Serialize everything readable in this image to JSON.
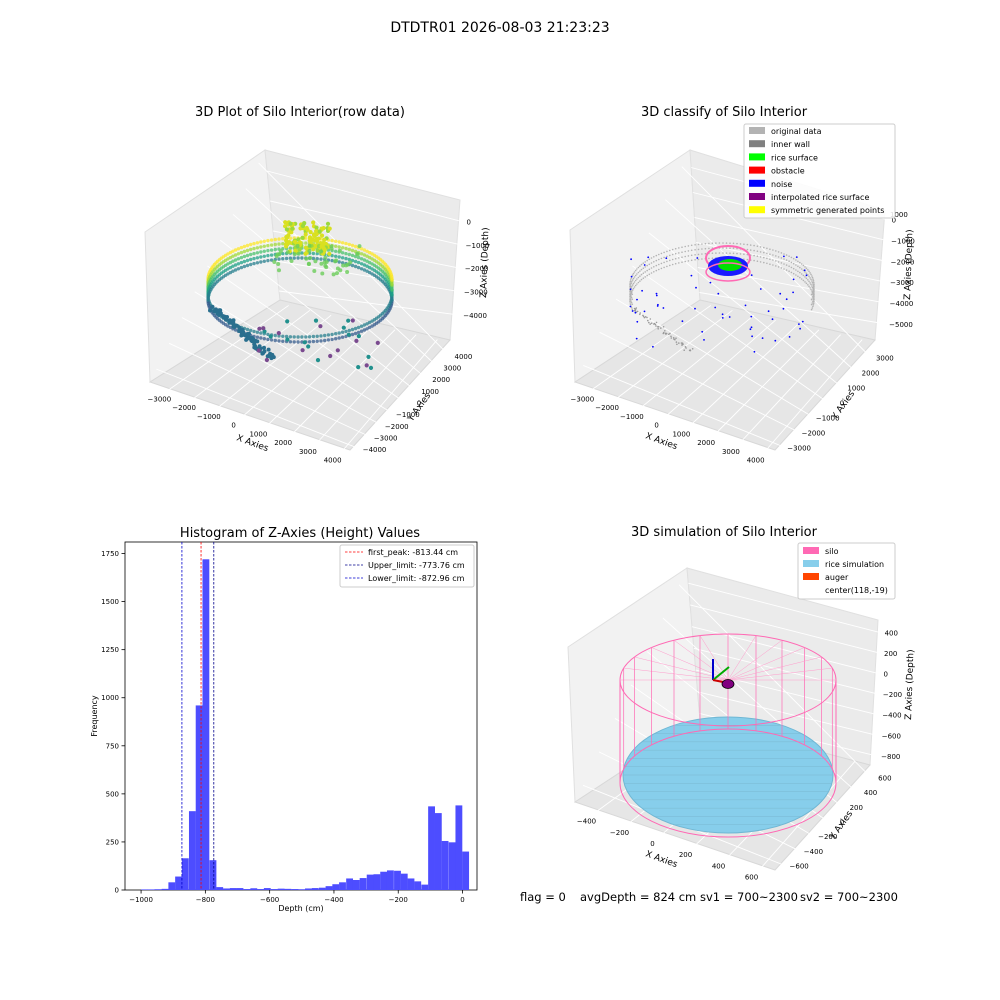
{
  "figure": {
    "suptitle": "DTDTR01 2026-08-03 21:23:23",
    "footer": {
      "flag": "flag = 0",
      "avg_depth": "avgDepth = 824 cm",
      "sv1": "sv1 = 700~2300",
      "sv2": "sv2 = 700~2300"
    }
  },
  "chart_data": [
    {
      "id": "raw3d",
      "type": "scatter",
      "projection": "3d",
      "title": "3D Plot of Silo Interior(row data)",
      "xlabel": "X Axies",
      "ylabel": "Y Axies",
      "zlabel": "Z Axies (Depth)",
      "x_ticks": [
        -3000,
        -2000,
        -1000,
        0,
        1000,
        2000,
        3000,
        4000
      ],
      "y_ticks": [
        -4000,
        -3000,
        -2000,
        -1000,
        0,
        1000,
        2000,
        3000,
        4000
      ],
      "z_ticks": [
        -4000,
        -3000,
        -2000,
        -1000,
        0
      ],
      "colormap": "viridis"
    },
    {
      "id": "classify3d",
      "type": "scatter",
      "projection": "3d",
      "title": "3D classify of Silo Interior",
      "xlabel": "X Axies",
      "ylabel": "Y Axies",
      "zlabel": "Z Axies (Depth)",
      "x_ticks": [
        -3000,
        -2000,
        -1000,
        0,
        1000,
        2000,
        3000,
        4000
      ],
      "y_ticks": [
        -3000,
        -2000,
        -1000,
        0,
        1000,
        2000,
        3000
      ],
      "z_ticks": [
        -5000,
        -4000,
        -3000,
        -2000,
        -1000,
        0
      ],
      "z_partial_tick": "1000",
      "legend_position": "top-right",
      "legend": [
        {
          "label": "original data",
          "color": "#b3b3b3"
        },
        {
          "label": "inner wall",
          "color": "#808080"
        },
        {
          "label": "rice surface",
          "color": "#00ff00"
        },
        {
          "label": "obstacle",
          "color": "#ff0000"
        },
        {
          "label": "noise",
          "color": "#0000ff"
        },
        {
          "label": "interpolated rice surface",
          "color": "#800080"
        },
        {
          "label": "symmetric generated points",
          "color": "#ffff00"
        }
      ]
    },
    {
      "id": "histogram",
      "type": "bar",
      "title": "Histogram of Z-Axies (Height) Values",
      "xlabel": "Depth (cm)",
      "ylabel": "Frequency",
      "xlim": [
        -1050,
        45
      ],
      "ylim": [
        0,
        1810
      ],
      "x_ticks": [
        -1000,
        -800,
        -600,
        -400,
        -200,
        0
      ],
      "x_tick_labels": [
        "−1000",
        "−800",
        "−600",
        "−400",
        "−200",
        "0"
      ],
      "y_ticks": [
        0,
        250,
        500,
        750,
        1000,
        1250,
        1500,
        1750
      ],
      "bar_color": "#4d4dff",
      "bin_width": 21.3,
      "bins": [
        [
          -1000,
          3
        ],
        [
          -979,
          3
        ],
        [
          -958,
          4
        ],
        [
          -936,
          6
        ],
        [
          -915,
          40
        ],
        [
          -894,
          70
        ],
        [
          -873,
          165
        ],
        [
          -851,
          410
        ],
        [
          -830,
          960
        ],
        [
          -809,
          1720
        ],
        [
          -787,
          155
        ],
        [
          -766,
          15
        ],
        [
          -745,
          8
        ],
        [
          -724,
          10
        ],
        [
          -703,
          10
        ],
        [
          -681,
          5
        ],
        [
          -660,
          9
        ],
        [
          -639,
          5
        ],
        [
          -618,
          10
        ],
        [
          -596,
          5
        ],
        [
          -575,
          7
        ],
        [
          -554,
          6
        ],
        [
          -532,
          5
        ],
        [
          -511,
          4
        ],
        [
          -490,
          8
        ],
        [
          -469,
          10
        ],
        [
          -447,
          12
        ],
        [
          -426,
          20
        ],
        [
          -405,
          30
        ],
        [
          -384,
          40
        ],
        [
          -362,
          60
        ],
        [
          -341,
          52
        ],
        [
          -320,
          62
        ],
        [
          -298,
          80
        ],
        [
          -277,
          82
        ],
        [
          -256,
          95
        ],
        [
          -235,
          102
        ],
        [
          -213,
          100
        ],
        [
          -192,
          85
        ],
        [
          -171,
          60
        ],
        [
          -150,
          45
        ],
        [
          -128,
          28
        ],
        [
          -107,
          435
        ],
        [
          -86,
          400
        ],
        [
          -65,
          255
        ],
        [
          -43,
          248
        ],
        [
          -22,
          440
        ],
        [
          -1,
          200
        ]
      ],
      "reference_lines": [
        {
          "label": "first_peak: -813.44 cm",
          "x": -813.44,
          "color": "#ff0000"
        },
        {
          "label": "Upper_limit: -773.76 cm",
          "x": -773.76,
          "color": "#00008b"
        },
        {
          "label": "Lower_limit: -872.96 cm",
          "x": -872.96,
          "color": "#0000cd"
        }
      ],
      "legend_position": "top-right"
    },
    {
      "id": "sim3d",
      "type": "surface",
      "projection": "3d",
      "title": "3D simulation of Silo Interior",
      "xlabel": "X Axies",
      "ylabel": "Y Axies",
      "zlabel": "Z Axies (Depth)",
      "x_ticks": [
        -400,
        -200,
        0,
        200,
        400,
        600
      ],
      "y_ticks": [
        -600,
        -400,
        -200,
        0,
        200,
        400,
        600
      ],
      "z_ticks": [
        -800,
        -600,
        -400,
        -200,
        0,
        200,
        400
      ],
      "legend_position": "top-right",
      "legend": [
        {
          "label": "silo",
          "color": "#ff69b4"
        },
        {
          "label": "rice simulation",
          "color": "#87ceeb"
        },
        {
          "label": "auger",
          "color": "#ff4500"
        },
        {
          "label": "center(118,-19)",
          "color": ""
        }
      ]
    }
  ]
}
